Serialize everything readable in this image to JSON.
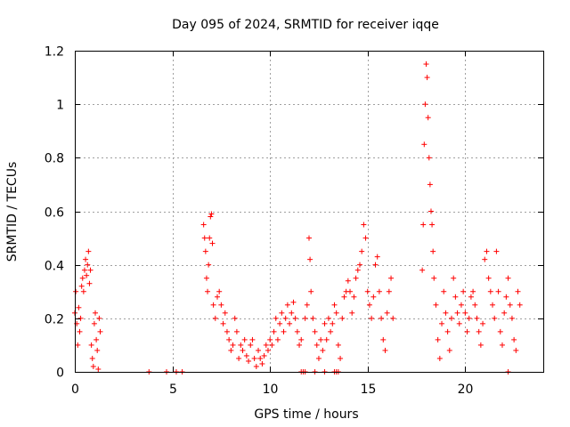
{
  "chart_data": {
    "type": "scatter",
    "title": "Day 095 of 2024, SRMTID for receiver iqqe",
    "xlabel": "GPS time / hours",
    "ylabel": "SRMTID / TECUs",
    "xlim": [
      0,
      24
    ],
    "ylim": [
      0,
      1.2
    ],
    "xticks": [
      0,
      5,
      10,
      15,
      20
    ],
    "xtick_labels": [
      "0",
      "5",
      "10",
      "15",
      "20"
    ],
    "yticks": [
      0,
      0.2,
      0.4,
      0.6,
      0.8,
      1,
      1.2
    ],
    "ytick_labels": [
      "0",
      "0.2",
      "0.4",
      "0.6",
      "0.8",
      "1",
      "1.2"
    ],
    "grid": true,
    "marker": "+",
    "color": "#ff0000",
    "series": [
      {
        "name": "SRMTID",
        "x": [
          0.0,
          0.05,
          0.1,
          0.15,
          0.2,
          0.25,
          0.3,
          0.35,
          0.4,
          0.45,
          0.5,
          0.55,
          0.6,
          0.65,
          0.7,
          0.75,
          0.8,
          0.85,
          0.9,
          0.95,
          1.0,
          1.05,
          1.1,
          1.15,
          1.2,
          1.25,
          1.3,
          3.8,
          4.7,
          5.2,
          5.5,
          6.6,
          6.65,
          6.7,
          6.75,
          6.8,
          6.85,
          6.9,
          6.95,
          7.0,
          7.05,
          7.1,
          7.2,
          7.3,
          7.4,
          7.5,
          7.6,
          7.7,
          7.8,
          7.9,
          8.0,
          8.1,
          8.2,
          8.3,
          8.4,
          8.5,
          8.6,
          8.7,
          8.8,
          8.9,
          9.0,
          9.1,
          9.2,
          9.3,
          9.4,
          9.5,
          9.6,
          9.7,
          9.8,
          9.9,
          10.0,
          10.1,
          10.2,
          10.3,
          10.4,
          10.5,
          10.6,
          10.7,
          10.8,
          10.9,
          11.0,
          11.1,
          11.2,
          11.3,
          11.4,
          11.5,
          11.6,
          11.8,
          11.9,
          12.0,
          12.05,
          12.1,
          12.2,
          12.3,
          12.4,
          12.5,
          12.6,
          12.7,
          12.8,
          12.9,
          13.0,
          13.1,
          13.2,
          13.3,
          13.4,
          13.5,
          13.6,
          13.7,
          13.8,
          13.9,
          14.0,
          14.1,
          14.2,
          14.3,
          14.4,
          14.5,
          14.6,
          14.7,
          14.8,
          14.9,
          15.0,
          15.1,
          15.2,
          15.3,
          15.4,
          15.5,
          15.6,
          15.7,
          15.8,
          15.9,
          16.0,
          16.1,
          16.2,
          16.3,
          17.8,
          17.85,
          17.9,
          17.95,
          18.0,
          18.05,
          18.1,
          18.15,
          18.2,
          18.25,
          18.3,
          18.35,
          18.4,
          18.5,
          18.6,
          18.7,
          18.8,
          18.9,
          19.0,
          19.1,
          19.2,
          19.3,
          19.4,
          19.5,
          19.6,
          19.7,
          19.8,
          19.9,
          20.0,
          20.1,
          20.2,
          20.3,
          20.4,
          20.5,
          20.6,
          20.7,
          20.8,
          20.9,
          21.0,
          21.1,
          21.2,
          21.3,
          21.4,
          21.5,
          21.6,
          21.7,
          21.8,
          21.9,
          22.0,
          22.1,
          22.2,
          22.3,
          22.4,
          22.5,
          22.6,
          22.7,
          22.8,
          11.6,
          11.7,
          11.8,
          12.3,
          12.8,
          13.3,
          13.4,
          13.5,
          22.2
        ],
        "y": [
          0.22,
          0.3,
          0.18,
          0.1,
          0.24,
          0.15,
          0.2,
          0.32,
          0.35,
          0.3,
          0.38,
          0.42,
          0.36,
          0.4,
          0.45,
          0.33,
          0.38,
          0.1,
          0.05,
          0.02,
          0.18,
          0.22,
          0.12,
          0.08,
          0.01,
          0.2,
          0.15,
          0.0,
          0.0,
          0.0,
          0.0,
          0.55,
          0.5,
          0.45,
          0.35,
          0.3,
          0.4,
          0.5,
          0.58,
          0.59,
          0.48,
          0.25,
          0.2,
          0.28,
          0.3,
          0.25,
          0.18,
          0.22,
          0.15,
          0.12,
          0.08,
          0.1,
          0.2,
          0.15,
          0.05,
          0.1,
          0.08,
          0.12,
          0.06,
          0.04,
          0.1,
          0.12,
          0.05,
          0.02,
          0.08,
          0.05,
          0.03,
          0.06,
          0.1,
          0.08,
          0.12,
          0.1,
          0.15,
          0.2,
          0.12,
          0.18,
          0.22,
          0.15,
          0.2,
          0.25,
          0.18,
          0.22,
          0.26,
          0.2,
          0.15,
          0.1,
          0.12,
          0.2,
          0.25,
          0.5,
          0.42,
          0.3,
          0.2,
          0.15,
          0.1,
          0.05,
          0.12,
          0.08,
          0.18,
          0.12,
          0.2,
          0.15,
          0.18,
          0.25,
          0.22,
          0.1,
          0.05,
          0.2,
          0.28,
          0.3,
          0.34,
          0.3,
          0.22,
          0.28,
          0.35,
          0.38,
          0.4,
          0.45,
          0.55,
          0.5,
          0.3,
          0.25,
          0.2,
          0.28,
          0.4,
          0.43,
          0.3,
          0.2,
          0.12,
          0.08,
          0.22,
          0.3,
          0.35,
          0.2,
          0.38,
          0.55,
          0.85,
          1.0,
          1.15,
          1.1,
          0.95,
          0.8,
          0.7,
          0.6,
          0.55,
          0.45,
          0.35,
          0.25,
          0.12,
          0.05,
          0.18,
          0.3,
          0.22,
          0.15,
          0.08,
          0.2,
          0.35,
          0.28,
          0.22,
          0.18,
          0.25,
          0.3,
          0.22,
          0.15,
          0.2,
          0.28,
          0.3,
          0.25,
          0.2,
          0.15,
          0.1,
          0.18,
          0.42,
          0.45,
          0.35,
          0.3,
          0.25,
          0.2,
          0.45,
          0.3,
          0.15,
          0.1,
          0.22,
          0.28,
          0.35,
          0.25,
          0.2,
          0.12,
          0.08,
          0.3,
          0.25,
          0.0,
          0.0,
          0.0,
          0.0,
          0.0,
          0.0,
          0.0,
          0.0,
          0.0
        ]
      }
    ]
  }
}
